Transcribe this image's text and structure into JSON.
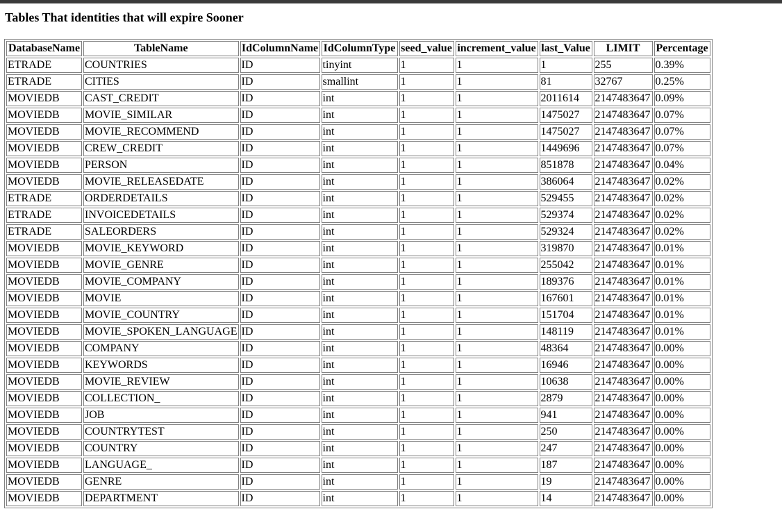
{
  "page": {
    "title": "Tables That identities that will expire Sooner"
  },
  "table": {
    "headers": [
      "DatabaseName",
      "TableName",
      "IdColumnName",
      "IdColumnType",
      "seed_value",
      "increment_value",
      "last_Value",
      "LIMIT",
      "Percentage"
    ],
    "rows": [
      [
        "ETRADE",
        "COUNTRIES",
        "ID",
        "tinyint",
        "1",
        "1",
        "1",
        "255",
        "0.39%"
      ],
      [
        "ETRADE",
        "CITIES",
        "ID",
        "smallint",
        "1",
        "1",
        "81",
        "32767",
        "0.25%"
      ],
      [
        "MOVIEDB",
        "CAST_CREDIT",
        "ID",
        "int",
        "1",
        "1",
        "2011614",
        "2147483647",
        "0.09%"
      ],
      [
        "MOVIEDB",
        "MOVIE_SIMILAR",
        "ID",
        "int",
        "1",
        "1",
        "1475027",
        "2147483647",
        "0.07%"
      ],
      [
        "MOVIEDB",
        "MOVIE_RECOMMEND",
        "ID",
        "int",
        "1",
        "1",
        "1475027",
        "2147483647",
        "0.07%"
      ],
      [
        "MOVIEDB",
        "CREW_CREDIT",
        "ID",
        "int",
        "1",
        "1",
        "1449696",
        "2147483647",
        "0.07%"
      ],
      [
        "MOVIEDB",
        "PERSON",
        "ID",
        "int",
        "1",
        "1",
        "851878",
        "2147483647",
        "0.04%"
      ],
      [
        "MOVIEDB",
        "MOVIE_RELEASEDATE",
        "ID",
        "int",
        "1",
        "1",
        "386064",
        "2147483647",
        "0.02%"
      ],
      [
        "ETRADE",
        "ORDERDETAILS",
        "ID",
        "int",
        "1",
        "1",
        "529455",
        "2147483647",
        "0.02%"
      ],
      [
        "ETRADE",
        "INVOICEDETAILS",
        "ID",
        "int",
        "1",
        "1",
        "529374",
        "2147483647",
        "0.02%"
      ],
      [
        "ETRADE",
        "SALEORDERS",
        "ID",
        "int",
        "1",
        "1",
        "529324",
        "2147483647",
        "0.02%"
      ],
      [
        "MOVIEDB",
        "MOVIE_KEYWORD",
        "ID",
        "int",
        "1",
        "1",
        "319870",
        "2147483647",
        "0.01%"
      ],
      [
        "MOVIEDB",
        "MOVIE_GENRE",
        "ID",
        "int",
        "1",
        "1",
        "255042",
        "2147483647",
        "0.01%"
      ],
      [
        "MOVIEDB",
        "MOVIE_COMPANY",
        "ID",
        "int",
        "1",
        "1",
        "189376",
        "2147483647",
        "0.01%"
      ],
      [
        "MOVIEDB",
        "MOVIE",
        "ID",
        "int",
        "1",
        "1",
        "167601",
        "2147483647",
        "0.01%"
      ],
      [
        "MOVIEDB",
        "MOVIE_COUNTRY",
        "ID",
        "int",
        "1",
        "1",
        "151704",
        "2147483647",
        "0.01%"
      ],
      [
        "MOVIEDB",
        "MOVIE_SPOKEN_LANGUAGE",
        "ID",
        "int",
        "1",
        "1",
        "148119",
        "2147483647",
        "0.01%"
      ],
      [
        "MOVIEDB",
        "COMPANY",
        "ID",
        "int",
        "1",
        "1",
        "48364",
        "2147483647",
        "0.00%"
      ],
      [
        "MOVIEDB",
        "KEYWORDS",
        "ID",
        "int",
        "1",
        "1",
        "16946",
        "2147483647",
        "0.00%"
      ],
      [
        "MOVIEDB",
        "MOVIE_REVIEW",
        "ID",
        "int",
        "1",
        "1",
        "10638",
        "2147483647",
        "0.00%"
      ],
      [
        "MOVIEDB",
        "COLLECTION_",
        "ID",
        "int",
        "1",
        "1",
        "2879",
        "2147483647",
        "0.00%"
      ],
      [
        "MOVIEDB",
        "JOB",
        "ID",
        "int",
        "1",
        "1",
        "941",
        "2147483647",
        "0.00%"
      ],
      [
        "MOVIEDB",
        "COUNTRYTEST",
        "ID",
        "int",
        "1",
        "1",
        "250",
        "2147483647",
        "0.00%"
      ],
      [
        "MOVIEDB",
        "COUNTRY",
        "ID",
        "int",
        "1",
        "1",
        "247",
        "2147483647",
        "0.00%"
      ],
      [
        "MOVIEDB",
        "LANGUAGE_",
        "ID",
        "int",
        "1",
        "1",
        "187",
        "2147483647",
        "0.00%"
      ],
      [
        "MOVIEDB",
        "GENRE",
        "ID",
        "int",
        "1",
        "1",
        "19",
        "2147483647",
        "0.00%"
      ],
      [
        "MOVIEDB",
        "DEPARTMENT",
        "ID",
        "int",
        "1",
        "1",
        "14",
        "2147483647",
        "0.00%"
      ]
    ]
  }
}
